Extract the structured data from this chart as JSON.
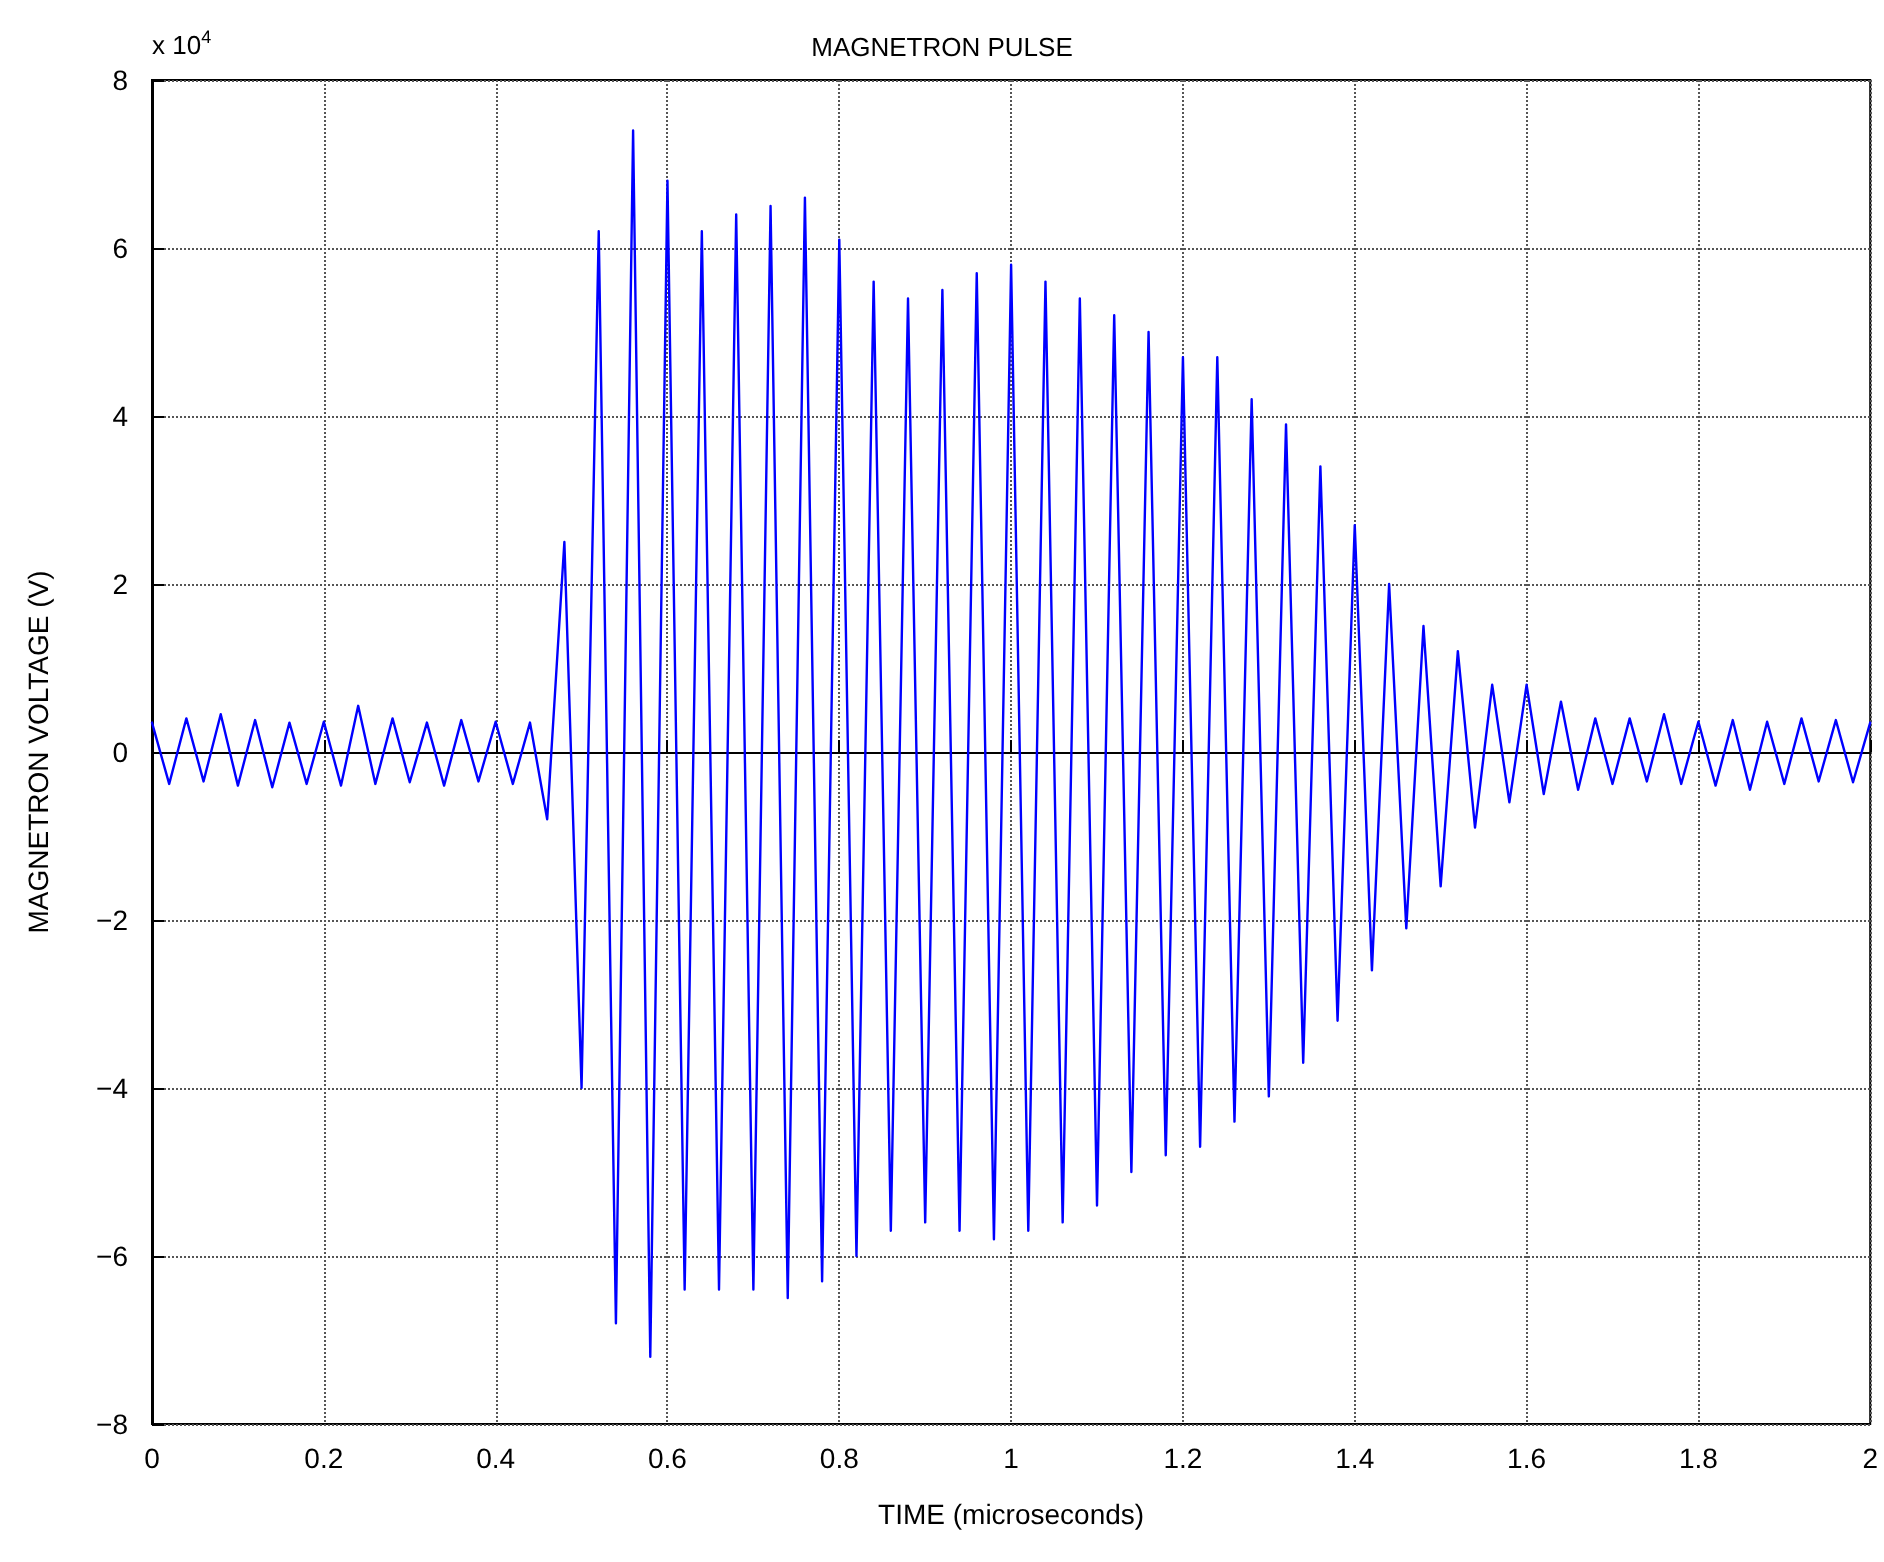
{
  "chart_data": {
    "type": "line",
    "title": "MAGNETRON PULSE",
    "xlabel": "TIME (microseconds)",
    "ylabel": "MAGNETRON VOLTAGE (V)",
    "annotations": [
      "x 10$^{4}$"
    ],
    "x": [
      0,
      0.02,
      0.04,
      0.06,
      0.08,
      0.1,
      0.12,
      0.14,
      0.16,
      0.18,
      0.2,
      0.22,
      0.24,
      0.26,
      0.28,
      0.3,
      0.32,
      0.34,
      0.36,
      0.38,
      0.4,
      0.42,
      0.44,
      0.46,
      0.48,
      0.5,
      0.52,
      0.54,
      0.56,
      0.58,
      0.6,
      0.62,
      0.64,
      0.66,
      0.68,
      0.7,
      0.72,
      0.74,
      0.76,
      0.78,
      0.8,
      0.82,
      0.84,
      0.86,
      0.88,
      0.9,
      0.92,
      0.94,
      0.96,
      0.98,
      1,
      1.02,
      1.04,
      1.06,
      1.08,
      1.1,
      1.12,
      1.14,
      1.16,
      1.18,
      1.2,
      1.22,
      1.24,
      1.26,
      1.28,
      1.3,
      1.32,
      1.34,
      1.36,
      1.38,
      1.4,
      1.42,
      1.44,
      1.46,
      1.48,
      1.5,
      1.52,
      1.54,
      1.56,
      1.58,
      1.6,
      1.62,
      1.64,
      1.66,
      1.68,
      1.7,
      1.72,
      1.74,
      1.76,
      1.78,
      1.8,
      1.82,
      1.84,
      1.86,
      1.88,
      1.9,
      1.92,
      1.94,
      1.96,
      1.98,
      2
    ],
    "series": [
      {
        "color": "#0000ff",
        "values": [
          0.35,
          -0.38,
          0.4,
          -0.35,
          0.45,
          -0.4,
          0.38,
          -0.42,
          0.35,
          -0.38,
          0.36,
          -0.4,
          0.55,
          -0.38,
          0.4,
          -0.36,
          0.35,
          -0.4,
          0.38,
          -0.35,
          0.36,
          -0.38,
          0.35,
          -0.8,
          2.5,
          -4.0,
          6.2,
          -6.8,
          7.4,
          -7.2,
          6.8,
          -6.4,
          6.2,
          -6.4,
          6.4,
          -6.4,
          6.5,
          -6.5,
          6.6,
          -6.3,
          6.1,
          -6.0,
          5.6,
          -5.7,
          5.4,
          -5.6,
          5.5,
          -5.7,
          5.7,
          -5.8,
          5.8,
          -5.7,
          5.6,
          -5.6,
          5.4,
          -5.4,
          5.2,
          -5.0,
          5.0,
          -4.8,
          4.7,
          -4.7,
          4.7,
          -4.4,
          4.2,
          -4.1,
          3.9,
          -3.7,
          3.4,
          -3.2,
          2.7,
          -2.6,
          2.0,
          -2.1,
          1.5,
          -1.6,
          1.2,
          -0.9,
          0.8,
          -0.6,
          0.8,
          -0.5,
          0.6,
          -0.45,
          0.4,
          -0.38,
          0.4,
          -0.35,
          0.45,
          -0.38,
          0.36,
          -0.4,
          0.38,
          -0.45,
          0.36,
          -0.38,
          0.4,
          -0.35,
          0.38,
          -0.36,
          0.35
        ]
      }
    ],
    "xlim": [
      0,
      2
    ],
    "xticks": [
      0,
      0.2,
      0.4,
      0.6,
      0.8,
      1,
      1.2,
      1.4,
      1.6,
      1.8,
      2
    ],
    "ylim": [
      -8,
      8
    ],
    "yticks": [
      -8,
      -6,
      -4,
      -2,
      0,
      2,
      4,
      6,
      8
    ],
    "grid": true,
    "marker": "none",
    "line_style": "solid"
  }
}
